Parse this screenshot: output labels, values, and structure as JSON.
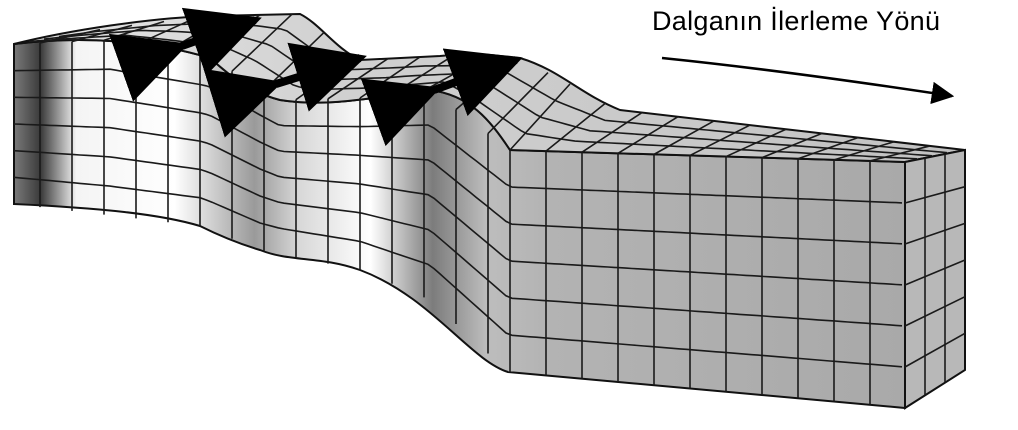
{
  "direction_label": "Dalganın İlerleme Yönü",
  "colors": {
    "background": "#ffffff",
    "block_face": "#a9a9a9",
    "block_top": "#c4c4c4",
    "grid": "#1a1a1a",
    "arrow": "#000000"
  },
  "icons": [
    "motion-arrow-icon",
    "propagation-arrow-icon"
  ]
}
